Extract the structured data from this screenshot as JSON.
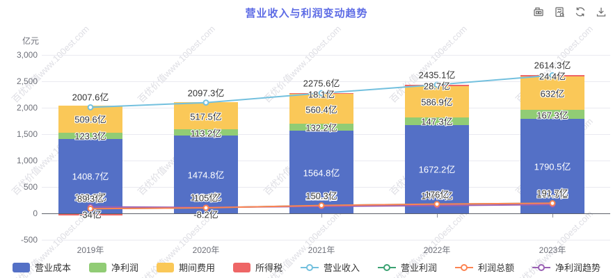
{
  "title": "营业收入与利润变动趋势",
  "watermark_text": "百优价值www.100est.com",
  "y_axis_name": "亿元",
  "toolbar": {
    "icons": [
      "data-view-icon",
      "chart-report-icon",
      "refresh-icon",
      "download-icon"
    ]
  },
  "colors": {
    "title": "#5d6be5",
    "operating_cost": "#5470c6",
    "net_profit": "#91cc75",
    "period_expense": "#fac858",
    "income_tax": "#ee6666",
    "revenue_line": "#73c0de",
    "operating_profit_line": "#3ba272",
    "total_profit_line": "#fc8452",
    "net_profit_trend_line": "#9a60b4"
  },
  "chart_data": {
    "type": "bar",
    "title": "营业收入与利润变动趋势",
    "xlabel": "",
    "ylabel": "亿元",
    "unit_suffix": "亿",
    "categories": [
      "2019年",
      "2020年",
      "2021年",
      "2022年",
      "2023年"
    ],
    "bar_series": [
      {
        "name": "营业成本",
        "color": "#5470c6",
        "stack": true,
        "label_style": "white",
        "values": [
          1408.7,
          1474.8,
          1564.8,
          1672.2,
          1790.5
        ]
      },
      {
        "name": "净利润",
        "color": "#91cc75",
        "stack": true,
        "label_style": "dark",
        "values": [
          123.3,
          113.2,
          132.2,
          147.3,
          167.3
        ]
      },
      {
        "name": "期间费用",
        "color": "#fac858",
        "stack": true,
        "label_style": "dark",
        "values": [
          509.6,
          517.5,
          560.4,
          586.9,
          632
        ]
      },
      {
        "name": "所得税",
        "color": "#ee6666",
        "stack": true,
        "label_style": "dark",
        "values": [
          -34,
          -8.2,
          18.1,
          28.7,
          24.4
        ]
      }
    ],
    "line_series": [
      {
        "name": "营业收入",
        "color": "#73c0de",
        "show_labels": true,
        "values": [
          2007.6,
          2097.3,
          2275.6,
          2435.1,
          2614.3
        ]
      },
      {
        "name": "营业利润",
        "color": "#3ba272",
        "show_labels": false,
        "values": [
          89.3,
          105,
          150.4,
          176,
          191.8
        ]
      },
      {
        "name": "净利润趋势",
        "color": "#9a60b4",
        "show_labels": true,
        "values": [
          123.3,
          113.2,
          132.2,
          147.3,
          167.3
        ]
      },
      {
        "name": "利润总额",
        "color": "#fc8452",
        "show_labels": true,
        "values": [
          89.3,
          105,
          150.3,
          176,
          191.7
        ]
      }
    ],
    "ylim": [
      -500,
      3000
    ],
    "y_ticks": {
      "values": [
        3000,
        2500,
        2000,
        1500,
        1000,
        500,
        0,
        -500
      ],
      "labels": [
        "3,000",
        "2,500",
        "2,000",
        "1,500",
        "1,000",
        "500",
        "0",
        "-500"
      ]
    },
    "grid": true,
    "legend_position": "bottom"
  },
  "legend": {
    "items": [
      {
        "label": "营业成本",
        "marker": "rect",
        "color": "#5470c6"
      },
      {
        "label": "净利润",
        "marker": "rect",
        "color": "#91cc75"
      },
      {
        "label": "期间费用",
        "marker": "rect",
        "color": "#fac858"
      },
      {
        "label": "所得税",
        "marker": "rect",
        "color": "#ee6666"
      },
      {
        "label": "营业收入",
        "marker": "line",
        "color": "#73c0de"
      },
      {
        "label": "营业利润",
        "marker": "line",
        "color": "#3ba272"
      },
      {
        "label": "利润总额",
        "marker": "line",
        "color": "#fc8452"
      },
      {
        "label": "净利润趋势",
        "marker": "line",
        "color": "#9a60b4"
      }
    ]
  }
}
